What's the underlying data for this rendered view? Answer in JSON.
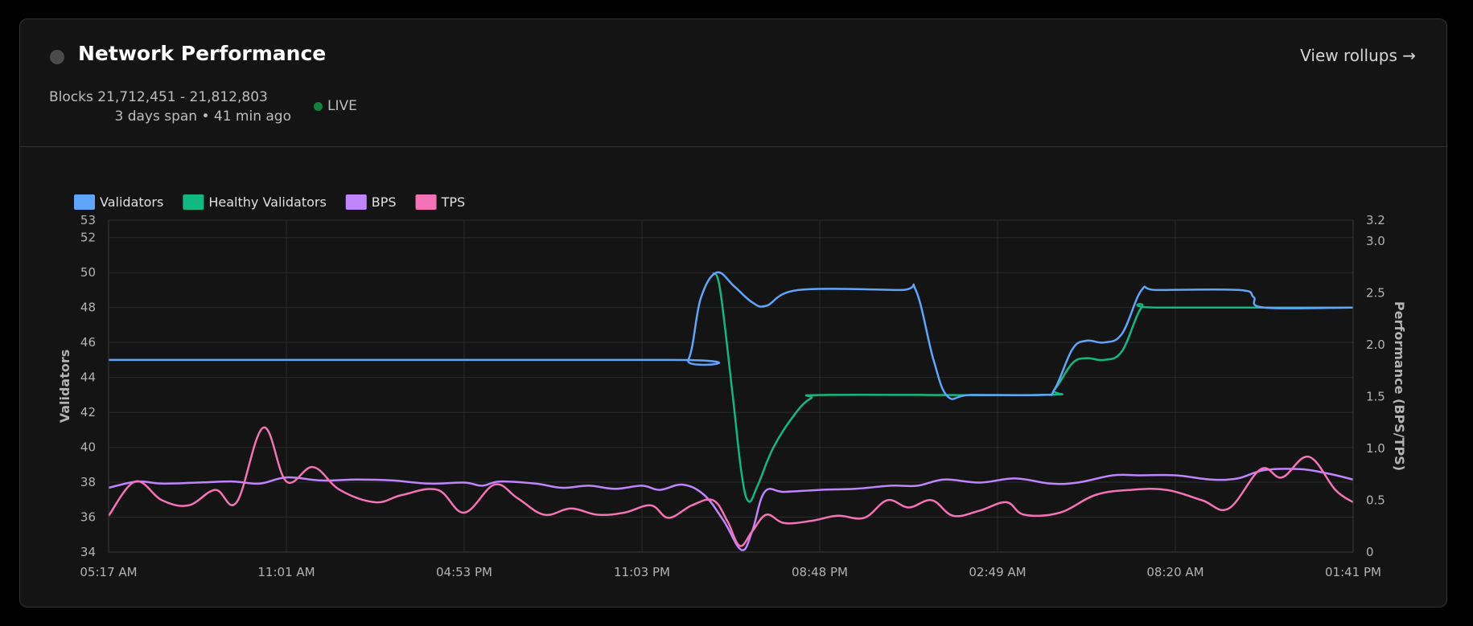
{
  "header": {
    "title": "Network Performance",
    "view_link": "View rollups →",
    "blocks": "Blocks 21,712,451 - 21,812,803",
    "span": "3 days span • 41 min ago",
    "live": "LIVE"
  },
  "colors": {
    "validators": "#60a5fa",
    "healthy": "#10b981",
    "bps": "#c084fc",
    "tps": "#f472b6",
    "live": "#15803d"
  },
  "chart_data": {
    "type": "line",
    "xlabel": "",
    "ylabel": "Validators",
    "y2label": "Performance (BPS/TPS)",
    "ylim": [
      34,
      53
    ],
    "y2lim": [
      0,
      3.2
    ],
    "yticks": [
      "34",
      "36",
      "38",
      "40",
      "42",
      "44",
      "46",
      "48",
      "50",
      "52",
      "53"
    ],
    "y2ticks": [
      "0",
      "0.5",
      "1.0",
      "1.5",
      "2.0",
      "2.5",
      "3.0",
      "3.2"
    ],
    "xticks": [
      "05:17 AM",
      "11:01 AM",
      "04:53 PM",
      "11:03 PM",
      "08:48 PM",
      "02:49 AM",
      "08:20 AM",
      "01:41 PM"
    ],
    "xticks_at": [
      0,
      10,
      20,
      30,
      40,
      50,
      60,
      70
    ],
    "legend_position": "top-left",
    "series": [
      {
        "name": "Validators",
        "axis": "left",
        "color": "#60a5fa",
        "points": [
          [
            0,
            45
          ],
          [
            31.5,
            45
          ],
          [
            32.6,
            45
          ],
          [
            33.3,
            48.5
          ],
          [
            34.2,
            50
          ],
          [
            35.2,
            49.2
          ],
          [
            36.2,
            48.3
          ],
          [
            37.0,
            48.1
          ],
          [
            38.8,
            49
          ],
          [
            44.5,
            49
          ],
          [
            45.4,
            49
          ],
          [
            46.4,
            45
          ],
          [
            47.2,
            42.9
          ],
          [
            48.5,
            43
          ],
          [
            52.5,
            43
          ],
          [
            53.2,
            43.3
          ],
          [
            54.2,
            45.6
          ],
          [
            55,
            46.1
          ],
          [
            56,
            46
          ],
          [
            57,
            46.5
          ],
          [
            58.1,
            49
          ],
          [
            59,
            49
          ],
          [
            63.6,
            49
          ],
          [
            64.4,
            48.6
          ],
          [
            65.0,
            48.0
          ],
          [
            70,
            48
          ]
        ]
      },
      {
        "name": "Healthy Validators",
        "axis": "left",
        "color": "#10b981",
        "points": [
          [
            34,
            50
          ],
          [
            34.4,
            49
          ],
          [
            35.1,
            43
          ],
          [
            35.6,
            38.5
          ],
          [
            36.0,
            36.9
          ],
          [
            36.5,
            37.8
          ],
          [
            37.4,
            40
          ],
          [
            38.6,
            41.9
          ],
          [
            39.5,
            42.8
          ],
          [
            40.5,
            43
          ],
          [
            52.5,
            43
          ],
          [
            53.2,
            43.3
          ],
          [
            54.2,
            44.8
          ],
          [
            55,
            45.1
          ],
          [
            56,
            45
          ],
          [
            57,
            45.5
          ],
          [
            58.1,
            48
          ],
          [
            59,
            48
          ],
          [
            70,
            48
          ]
        ]
      },
      {
        "name": "BPS",
        "axis": "right",
        "color": "#c084fc",
        "points": [
          [
            0,
            0.62
          ],
          [
            1.6,
            0.68
          ],
          [
            3,
            0.66
          ],
          [
            5,
            0.67
          ],
          [
            7,
            0.68
          ],
          [
            8.5,
            0.66
          ],
          [
            10,
            0.72
          ],
          [
            12,
            0.69
          ],
          [
            14,
            0.7
          ],
          [
            16,
            0.69
          ],
          [
            18,
            0.66
          ],
          [
            20,
            0.67
          ],
          [
            21,
            0.64
          ],
          [
            22,
            0.68
          ],
          [
            24,
            0.66
          ],
          [
            25.5,
            0.62
          ],
          [
            27,
            0.64
          ],
          [
            28.5,
            0.61
          ],
          [
            30,
            0.64
          ],
          [
            31,
            0.6
          ],
          [
            32.3,
            0.65
          ],
          [
            33.5,
            0.55
          ],
          [
            34.6,
            0.3
          ],
          [
            35.6,
            0.02
          ],
          [
            36.2,
            0.2
          ],
          [
            36.9,
            0.58
          ],
          [
            38,
            0.58
          ],
          [
            40,
            0.6
          ],
          [
            42,
            0.61
          ],
          [
            44,
            0.64
          ],
          [
            45.5,
            0.64
          ],
          [
            47,
            0.7
          ],
          [
            49,
            0.67
          ],
          [
            51,
            0.71
          ],
          [
            53,
            0.66
          ],
          [
            54.5,
            0.67
          ],
          [
            56.5,
            0.74
          ],
          [
            58,
            0.74
          ],
          [
            60,
            0.74
          ],
          [
            62,
            0.7
          ],
          [
            63.5,
            0.71
          ],
          [
            65,
            0.79
          ],
          [
            67,
            0.8
          ],
          [
            68.5,
            0.76
          ],
          [
            70,
            0.7
          ]
        ]
      },
      {
        "name": "TPS",
        "axis": "right",
        "color": "#f472b6",
        "points": [
          [
            0,
            0.35
          ],
          [
            1.5,
            0.68
          ],
          [
            3,
            0.5
          ],
          [
            4.5,
            0.45
          ],
          [
            6,
            0.6
          ],
          [
            7.2,
            0.48
          ],
          [
            8.7,
            1.2
          ],
          [
            10,
            0.68
          ],
          [
            11.5,
            0.82
          ],
          [
            13,
            0.6
          ],
          [
            15,
            0.48
          ],
          [
            16.5,
            0.55
          ],
          [
            18.5,
            0.6
          ],
          [
            20,
            0.38
          ],
          [
            21.7,
            0.65
          ],
          [
            23,
            0.52
          ],
          [
            24.5,
            0.36
          ],
          [
            26,
            0.42
          ],
          [
            27.5,
            0.36
          ],
          [
            29,
            0.38
          ],
          [
            30.5,
            0.45
          ],
          [
            31.5,
            0.33
          ],
          [
            32.8,
            0.45
          ],
          [
            34,
            0.5
          ],
          [
            34.8,
            0.3
          ],
          [
            35.5,
            0.06
          ],
          [
            36.2,
            0.2
          ],
          [
            37,
            0.36
          ],
          [
            38,
            0.28
          ],
          [
            39.5,
            0.3
          ],
          [
            41,
            0.35
          ],
          [
            42.5,
            0.33
          ],
          [
            43.8,
            0.5
          ],
          [
            45,
            0.43
          ],
          [
            46.3,
            0.5
          ],
          [
            47.5,
            0.35
          ],
          [
            49,
            0.4
          ],
          [
            50.5,
            0.48
          ],
          [
            51.5,
            0.36
          ],
          [
            53.5,
            0.38
          ],
          [
            55.5,
            0.55
          ],
          [
            57.5,
            0.6
          ],
          [
            59.5,
            0.6
          ],
          [
            61.5,
            0.5
          ],
          [
            63,
            0.42
          ],
          [
            64.8,
            0.8
          ],
          [
            66,
            0.72
          ],
          [
            67.5,
            0.92
          ],
          [
            69,
            0.6
          ],
          [
            70,
            0.48
          ]
        ]
      }
    ]
  }
}
